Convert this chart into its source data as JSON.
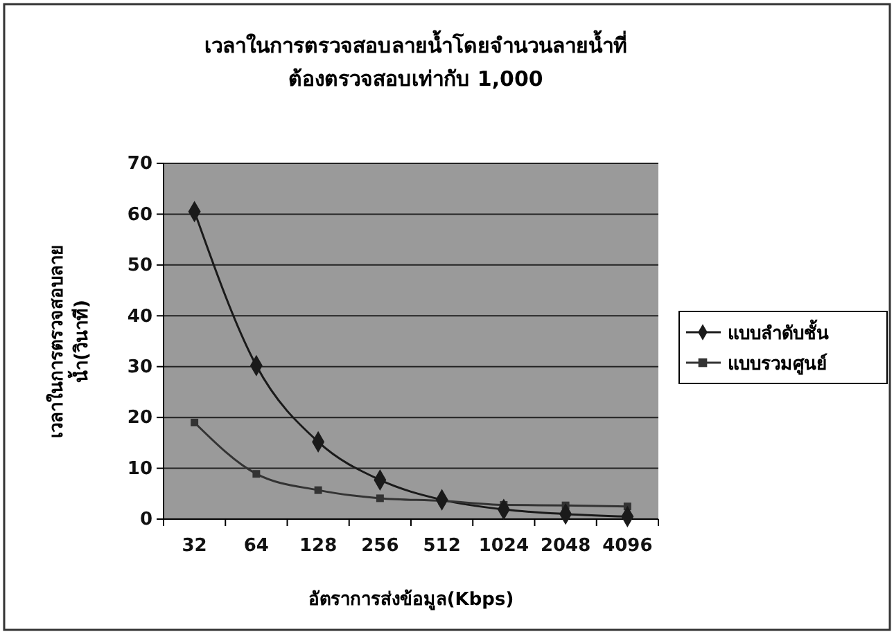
{
  "chart_data": {
    "type": "line",
    "title": "เวลาในการตรวจสอบลายน้ำโดยจำนวนลายน้ำที่\nต้องตรวจสอบเท่ากับ 1,000",
    "xlabel": "อัตราการส่งข้อมูล(Kbps)",
    "ylabel": "เวลาในการตรวจสอบลาย\nน้ำ(วินาที)",
    "categories": [
      "32",
      "64",
      "128",
      "256",
      "512",
      "1024",
      "2048",
      "4096"
    ],
    "series": [
      {
        "name": "แบบลำดับชั้น",
        "color": "#1a1a1a",
        "marker": "diamond",
        "values": [
          60.5,
          30.2,
          15.2,
          7.7,
          3.8,
          1.9,
          1.0,
          0.5
        ]
      },
      {
        "name": "แบบรวมศูนย์",
        "color": "#333333",
        "marker": "square",
        "values": [
          19,
          8.9,
          5.7,
          4.1,
          3.6,
          2.8,
          2.7,
          2.5
        ]
      }
    ],
    "ylim": [
      0,
      70
    ],
    "yticks": [
      0,
      10,
      20,
      30,
      40,
      50,
      60,
      70
    ],
    "grid": "y",
    "legend": "right"
  }
}
